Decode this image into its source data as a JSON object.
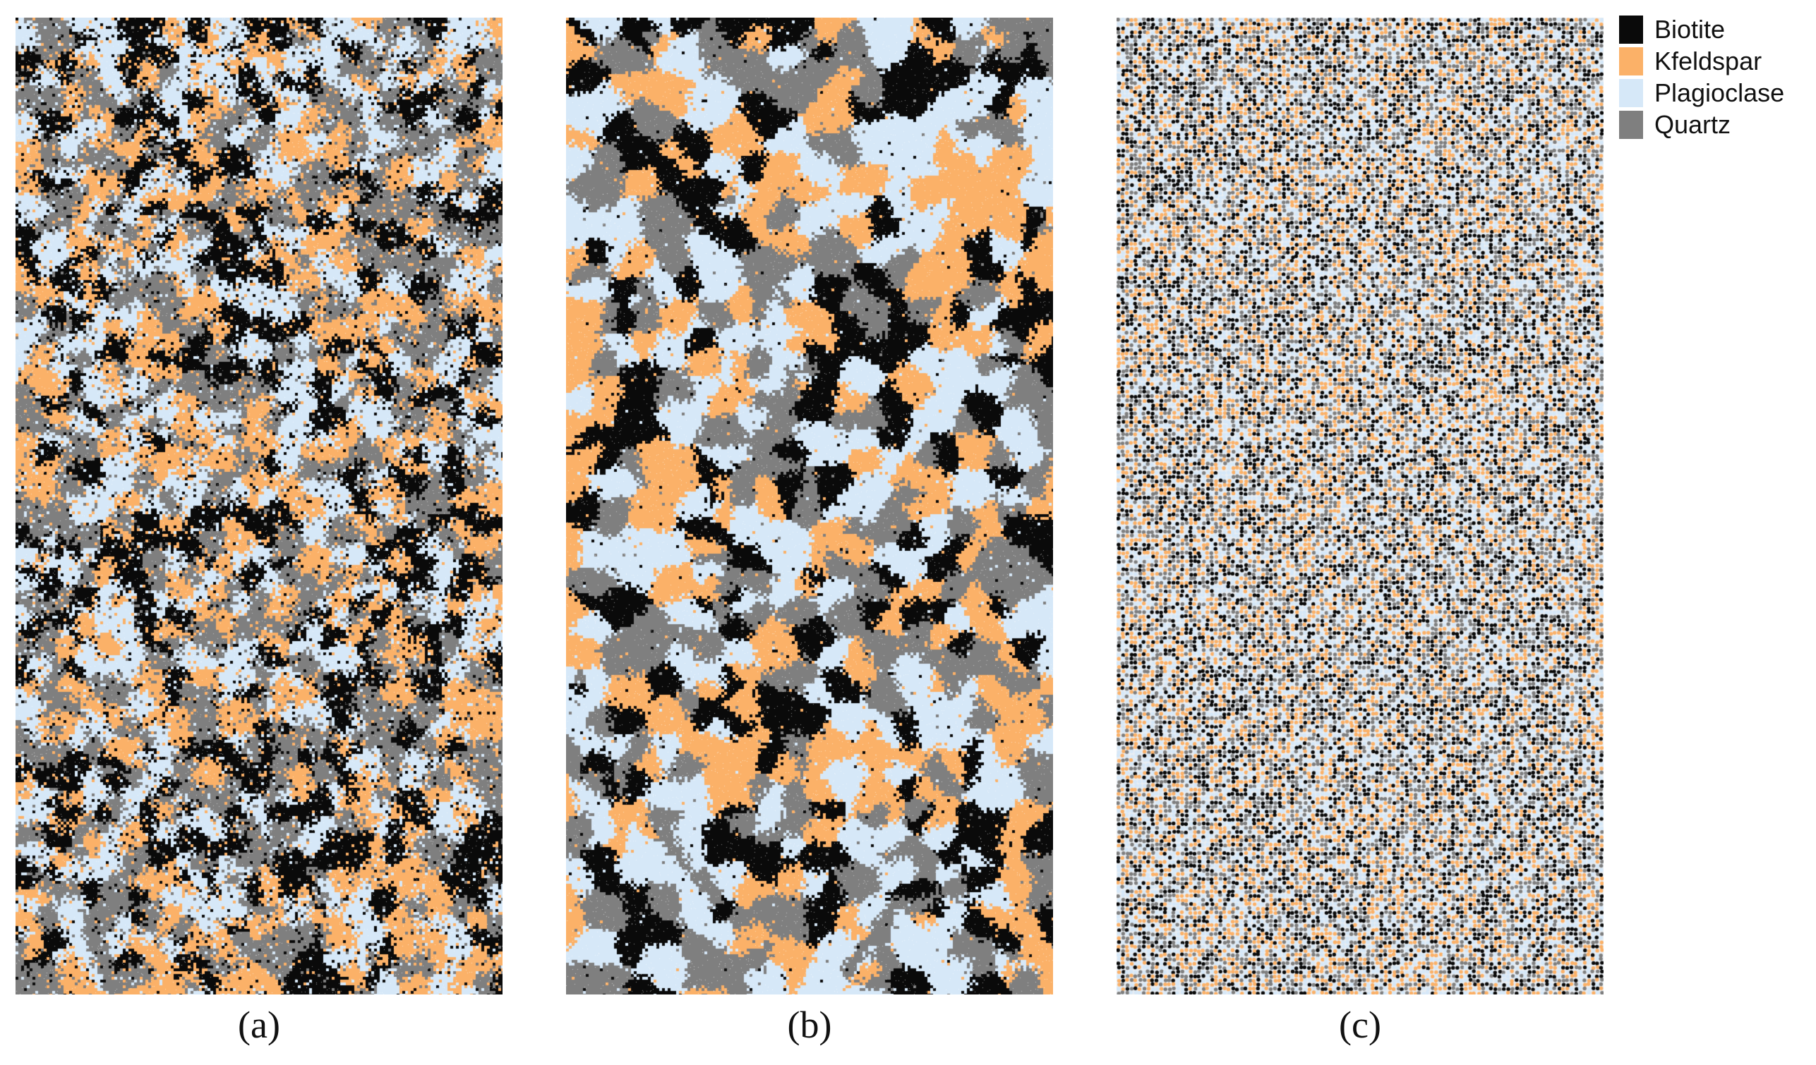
{
  "legend": {
    "items": [
      {
        "label": "Biotite",
        "color": "#0a0a0a"
      },
      {
        "label": "Kfeldspar",
        "color": "#fbb168"
      },
      {
        "label": "Plagioclase",
        "color": "#d6e8f8"
      },
      {
        "label": "Quartz",
        "color": "#7f7f7f"
      }
    ]
  },
  "panels": [
    {
      "caption": "(a)",
      "pattern": "large-irregular-clusters"
    },
    {
      "caption": "(b)",
      "pattern": "medium-polygonal-grains"
    },
    {
      "caption": "(c)",
      "pattern": "fine-random-particles"
    }
  ]
}
